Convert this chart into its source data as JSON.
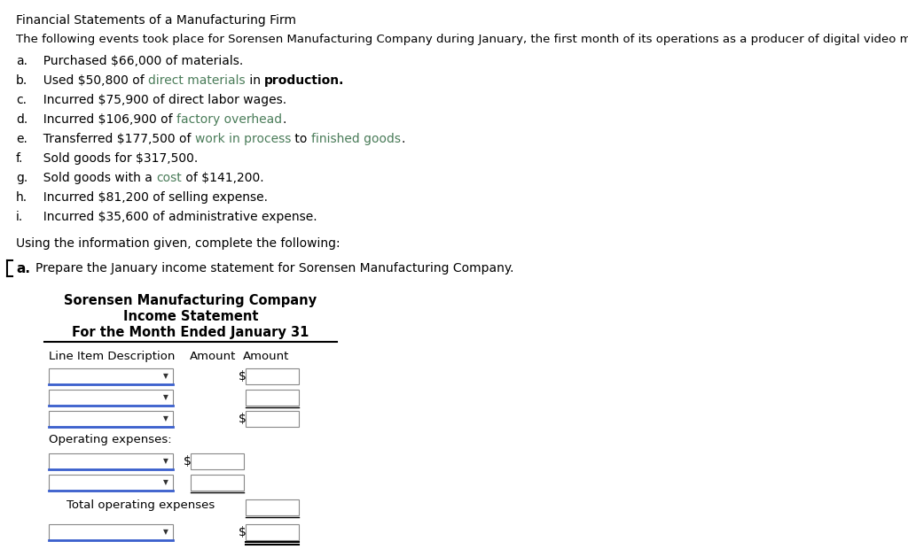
{
  "title_main": "Financial Statements of a Manufacturing Firm",
  "intro": "The following events took place for Sorensen Manufacturing Company during January, the first month of its operations as a producer of digital video monitors:",
  "events": [
    {
      "label": "a.",
      "segments": [
        {
          "text": "  Purchased $66,000 of materials.",
          "color": "#000000",
          "bold": false
        }
      ]
    },
    {
      "label": "b.",
      "segments": [
        {
          "text": "  Used $50,800 of ",
          "color": "#000000",
          "bold": false
        },
        {
          "text": "direct materials",
          "color": "#4a7c59",
          "bold": false
        },
        {
          "text": " in ",
          "color": "#000000",
          "bold": false
        },
        {
          "text": "production.",
          "color": "#000000",
          "bold": true
        }
      ]
    },
    {
      "label": "c.",
      "segments": [
        {
          "text": "  Incurred $75,900 of direct labor wages.",
          "color": "#000000",
          "bold": false
        }
      ]
    },
    {
      "label": "d.",
      "segments": [
        {
          "text": "  Incurred $106,900 of ",
          "color": "#000000",
          "bold": false
        },
        {
          "text": "factory overhead",
          "color": "#4a7c59",
          "bold": false
        },
        {
          "text": ".",
          "color": "#000000",
          "bold": false
        }
      ]
    },
    {
      "label": "e.",
      "segments": [
        {
          "text": "  Transferred $177,500 of ",
          "color": "#000000",
          "bold": false
        },
        {
          "text": "work in process",
          "color": "#4a7c59",
          "bold": false
        },
        {
          "text": " to ",
          "color": "#000000",
          "bold": false
        },
        {
          "text": "finished goods",
          "color": "#4a7c59",
          "bold": false
        },
        {
          "text": ".",
          "color": "#000000",
          "bold": false
        }
      ]
    },
    {
      "label": "f.",
      "segments": [
        {
          "text": "  Sold goods for $317,500.",
          "color": "#000000",
          "bold": false
        }
      ]
    },
    {
      "label": "g.",
      "segments": [
        {
          "text": "  Sold goods with a ",
          "color": "#000000",
          "bold": false
        },
        {
          "text": "cost",
          "color": "#4a7c59",
          "bold": false
        },
        {
          "text": " of $141,200.",
          "color": "#000000",
          "bold": false
        }
      ]
    },
    {
      "label": "h.",
      "segments": [
        {
          "text": "  Incurred $81,200 of selling expense.",
          "color": "#000000",
          "bold": false
        }
      ]
    },
    {
      "label": "i.",
      "segments": [
        {
          "text": "  Incurred $35,600 of administrative expense.",
          "color": "#000000",
          "bold": false
        }
      ]
    }
  ],
  "instruction": "Using the information given, complete the following:",
  "question_label": "a.",
  "question_text": "Prepare the January income statement for Sorensen Manufacturing Company.",
  "company_name": "Sorensen Manufacturing Company",
  "statement_title": "Income Statement",
  "period": "For the Month Ended January 31",
  "col_headers": [
    "Line Item Description",
    "Amount",
    "Amount"
  ],
  "operating_label": "Operating expenses:",
  "total_label": "Total operating expenses",
  "bg_color": "#ffffff",
  "green_color": "#4a7c59",
  "blue_color": "#3a5fcd",
  "black": "#000000",
  "gray_box": "#e8e8e8",
  "font_size": 10,
  "small_font": 9
}
